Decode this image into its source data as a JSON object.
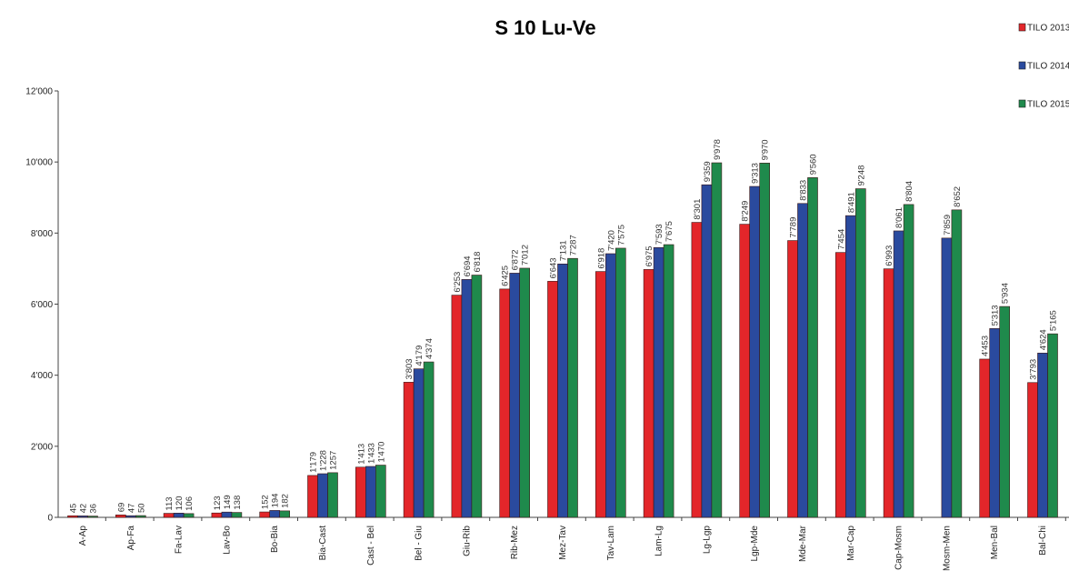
{
  "chart_data": {
    "type": "bar",
    "title": "S 10 Lu-Ve",
    "xlabel": "",
    "ylabel": "",
    "ylim": [
      0,
      12000
    ],
    "grid": false,
    "legend_placement": "top-right",
    "y_ticks": [
      {
        "value": 0,
        "label": "0"
      },
      {
        "value": 2000,
        "label": "2'000"
      },
      {
        "value": 4000,
        "label": "4'000"
      },
      {
        "value": 6000,
        "label": "6'000"
      },
      {
        "value": 8000,
        "label": "8'000"
      },
      {
        "value": 10000,
        "label": "10'000"
      },
      {
        "value": 12000,
        "label": "12'000"
      }
    ],
    "categories": [
      "A-Ap",
      "Ap-Fa",
      "Fa-Lav",
      "Lav-Bo",
      "Bo-Bia",
      "Bia-Cast",
      "Cast - Bel",
      "Bel - Giu",
      "Giu-Rib",
      "Rib-Mez",
      "Mez-Tav",
      "Tav-Lam",
      "Lam-Lg",
      "Lg-Lgp",
      "Lgp-Mde",
      "Mde-Mar",
      "Mar-Cap",
      "Cap-Mosm",
      "Mosm-Men",
      "Men-Bal",
      "Bal-Chi"
    ],
    "series": [
      {
        "name": "TILO 2013",
        "color": "#e3262a",
        "values": [
          45,
          69,
          113,
          123,
          152,
          1179,
          1413,
          3803,
          6253,
          6425,
          6643,
          6918,
          6975,
          8301,
          8249,
          7789,
          7454,
          6993,
          null,
          4453,
          3793
        ],
        "labels": [
          "45",
          "69",
          "113",
          "123",
          "152",
          "1'179",
          "1'413",
          "3'803",
          "6'253",
          "6'425",
          "6'643",
          "6'918",
          "6'975",
          "8'301",
          "8'249",
          "7'789",
          "7'454",
          "6'993",
          "",
          "4'453",
          "3'793"
        ]
      },
      {
        "name": "TILO 2014",
        "color": "#2a4a9e",
        "values": [
          42,
          47,
          120,
          149,
          194,
          1228,
          1433,
          4179,
          6694,
          6872,
          7131,
          7420,
          7593,
          9359,
          9313,
          8833,
          8491,
          8061,
          7859,
          5313,
          4624
        ],
        "labels": [
          "42",
          "47",
          "120",
          "149",
          "194",
          "1'228",
          "1'433",
          "4'179",
          "6'694",
          "6'872",
          "7'131",
          "7'420",
          "7'593",
          "9'359",
          "9'313",
          "8'833",
          "8'491",
          "8'061",
          "7'859",
          "5'313",
          "4'624"
        ]
      },
      {
        "name": "TILO 2015",
        "color": "#1f8a4c",
        "values": [
          36,
          50,
          106,
          138,
          182,
          1257,
          1470,
          4374,
          6818,
          7012,
          7287,
          7575,
          7675,
          9978,
          9970,
          9560,
          9248,
          8804,
          8652,
          5934,
          5165
        ],
        "labels": [
          "36",
          "50",
          "106",
          "138",
          "182",
          "1257",
          "1'470",
          "4'374",
          "6'818",
          "7'012",
          "7'287",
          "7'575",
          "7'675",
          "9'978",
          "9'970",
          "9'560",
          "9'248",
          "8'804",
          "8'652",
          "5'934",
          "5'165"
        ]
      }
    ]
  }
}
